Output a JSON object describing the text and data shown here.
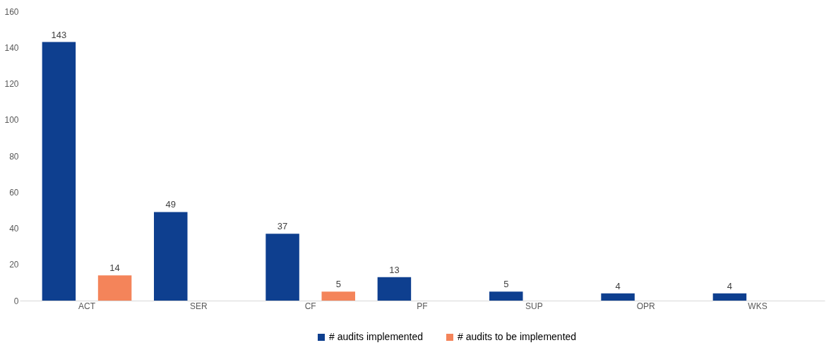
{
  "chart_data": {
    "type": "bar",
    "categories": [
      "ACT",
      "SER",
      "CF",
      "PF",
      "SUP",
      "OPR",
      "WKS"
    ],
    "series": [
      {
        "name": "# audits implemented",
        "color": "#0e3f8f",
        "values": [
          143,
          49,
          37,
          13,
          5,
          4,
          4
        ]
      },
      {
        "name": "# audits to be implemented",
        "color": "#f4845a",
        "values": [
          14,
          null,
          5,
          null,
          null,
          null,
          null
        ]
      }
    ],
    "ylim": [
      0,
      160
    ],
    "yticks": [
      0,
      20,
      40,
      60,
      80,
      100,
      120,
      140,
      160
    ],
    "grid": false,
    "legend": "bottom",
    "data_labels": true
  }
}
